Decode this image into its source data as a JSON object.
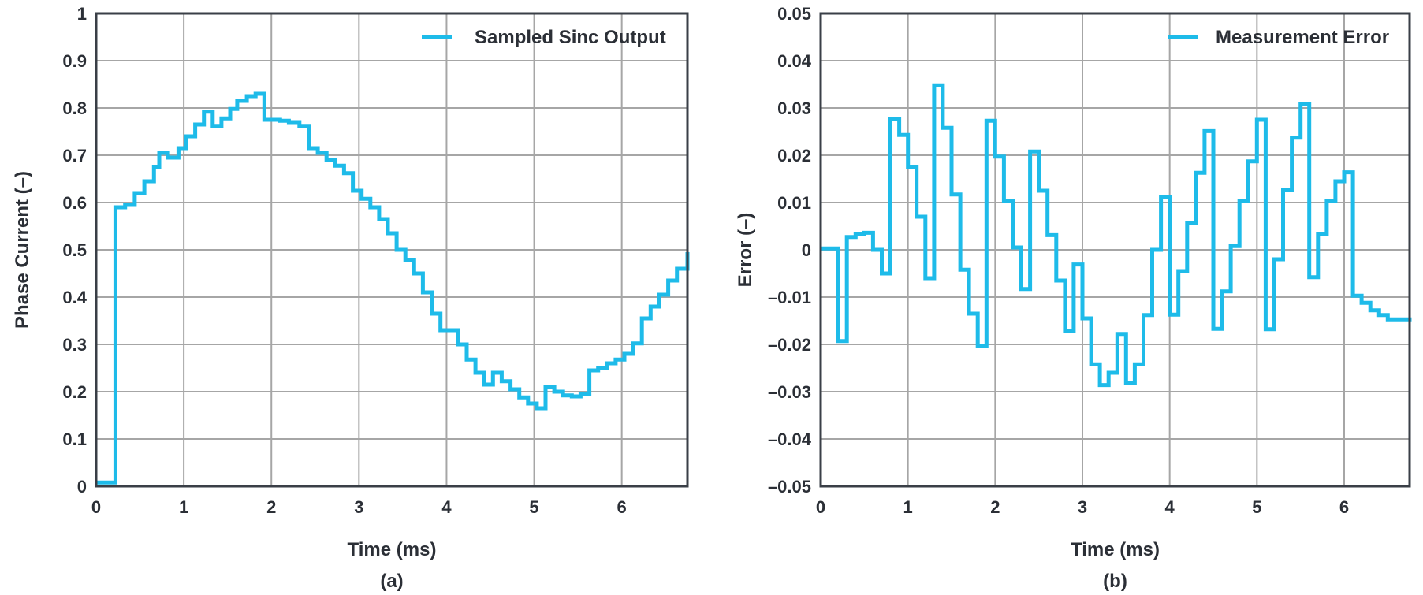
{
  "chart_data": [
    {
      "type": "line",
      "panel_label": "(a)",
      "xlabel": "Time (ms)",
      "ylabel": "Phase Current (–)",
      "xlim": [
        0,
        6.75
      ],
      "ylim": [
        0,
        1
      ],
      "x_ticks": [
        "0",
        "1",
        "2",
        "3",
        "4",
        "5",
        "6"
      ],
      "y_ticks": [
        "0",
        "0.1",
        "0.2",
        "0.3",
        "0.4",
        "0.5",
        "0.6",
        "0.7",
        "0.8",
        "0.9",
        "1"
      ],
      "grid": true,
      "legend": "top-right",
      "step": true,
      "series": [
        {
          "name": "Sampled Sinc Output",
          "color": "#1ebbe9",
          "x": [
            0,
            0.22,
            0.33,
            0.44,
            0.55,
            0.66,
            0.72,
            0.82,
            0.94,
            1.03,
            1.13,
            1.23,
            1.33,
            1.43,
            1.53,
            1.61,
            1.72,
            1.82,
            1.92,
            2.0,
            2.1,
            2.2,
            2.32,
            2.43,
            2.53,
            2.63,
            2.73,
            2.83,
            2.93,
            3.03,
            3.13,
            3.23,
            3.33,
            3.43,
            3.53,
            3.63,
            3.73,
            3.83,
            3.93,
            4.03,
            4.13,
            4.23,
            4.33,
            4.43,
            4.53,
            4.63,
            4.73,
            4.83,
            4.93,
            5.03,
            5.13,
            5.23,
            5.33,
            5.43,
            5.53,
            5.63,
            5.73,
            5.83,
            5.93,
            6.03,
            6.13,
            6.23,
            6.33,
            6.43,
            6.53,
            6.63,
            6.75
          ],
          "y": [
            0.008,
            0.59,
            0.595,
            0.62,
            0.645,
            0.675,
            0.705,
            0.695,
            0.715,
            0.74,
            0.765,
            0.792,
            0.762,
            0.778,
            0.798,
            0.815,
            0.825,
            0.83,
            0.775,
            0.775,
            0.773,
            0.77,
            0.762,
            0.715,
            0.705,
            0.69,
            0.678,
            0.662,
            0.625,
            0.608,
            0.59,
            0.565,
            0.535,
            0.5,
            0.478,
            0.45,
            0.41,
            0.365,
            0.33,
            0.33,
            0.3,
            0.268,
            0.24,
            0.215,
            0.24,
            0.222,
            0.205,
            0.188,
            0.175,
            0.165,
            0.21,
            0.2,
            0.192,
            0.19,
            0.195,
            0.245,
            0.25,
            0.26,
            0.268,
            0.28,
            0.302,
            0.355,
            0.38,
            0.405,
            0.435,
            0.46,
            0.495
          ]
        }
      ]
    },
    {
      "type": "line",
      "panel_label": "(b)",
      "xlabel": "Time (ms)",
      "ylabel": "Error (–)",
      "xlim": [
        0,
        6.75
      ],
      "ylim": [
        -0.05,
        0.05
      ],
      "x_ticks": [
        "0",
        "1",
        "2",
        "3",
        "4",
        "5",
        "6"
      ],
      "y_ticks": [
        "–0.05",
        "–0.04",
        "–0.03",
        "–0.02",
        "–0.01",
        "0",
        "0.01",
        "0.02",
        "0.03",
        "0.04",
        "0.05"
      ],
      "grid": true,
      "legend": "top-right",
      "step": true,
      "series": [
        {
          "name": "Measurement Error",
          "color": "#1ebbe9",
          "x": [
            0,
            0.2,
            0.3,
            0.4,
            0.5,
            0.6,
            0.7,
            0.8,
            0.9,
            1.0,
            1.1,
            1.2,
            1.3,
            1.4,
            1.5,
            1.6,
            1.7,
            1.8,
            1.9,
            2.0,
            2.1,
            2.2,
            2.3,
            2.4,
            2.5,
            2.6,
            2.7,
            2.8,
            2.9,
            3.0,
            3.1,
            3.2,
            3.3,
            3.4,
            3.5,
            3.6,
            3.7,
            3.8,
            3.9,
            4.0,
            4.1,
            4.2,
            4.3,
            4.4,
            4.5,
            4.6,
            4.7,
            4.8,
            4.9,
            5.0,
            5.1,
            5.2,
            5.3,
            5.4,
            5.5,
            5.6,
            5.7,
            5.8,
            5.9,
            6.0,
            6.1,
            6.2,
            6.3,
            6.4,
            6.5,
            6.6,
            6.75
          ],
          "y": [
            0.0003,
            -0.0193,
            0.0027,
            0.0033,
            0.0036,
            0.0,
            -0.005,
            0.0276,
            0.0243,
            0.0175,
            0.007,
            -0.006,
            0.0348,
            0.0258,
            0.0117,
            -0.0042,
            -0.0135,
            -0.0203,
            0.0273,
            0.0197,
            0.0103,
            0.0005,
            -0.0083,
            0.0208,
            0.0125,
            0.0031,
            -0.0065,
            -0.0172,
            -0.0031,
            -0.0145,
            -0.0242,
            -0.0286,
            -0.026,
            -0.0178,
            -0.0282,
            -0.0242,
            -0.0138,
            0.0,
            0.0112,
            -0.0137,
            -0.0045,
            0.0056,
            0.0163,
            0.0251,
            -0.0167,
            -0.0088,
            0.0008,
            0.0104,
            0.0187,
            0.0275,
            -0.0168,
            -0.002,
            0.0126,
            0.0237,
            0.0308,
            -0.0058,
            0.0034,
            0.0103,
            0.0145,
            0.0164,
            -0.0097,
            -0.0112,
            -0.0128,
            -0.0138,
            -0.0147,
            -0.0147,
            -0.0143
          ]
        }
      ]
    }
  ]
}
